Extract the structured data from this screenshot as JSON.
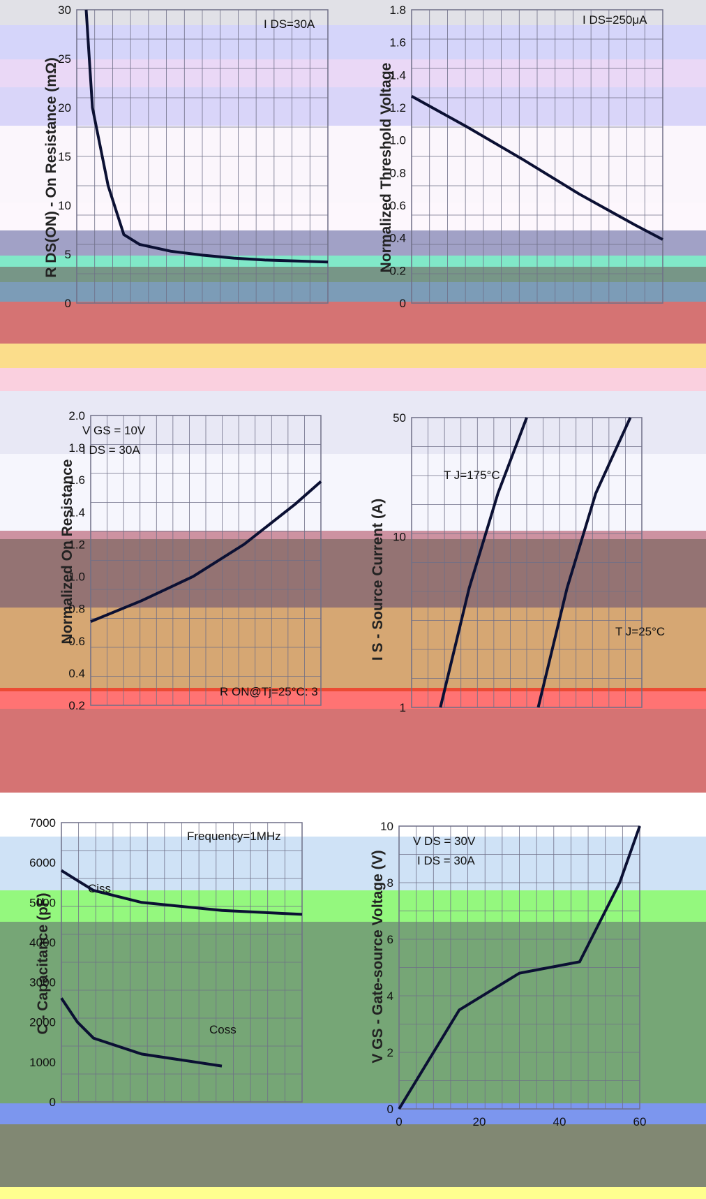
{
  "colors": {
    "curve": "#0b1033",
    "grid": "#6f6f87",
    "bands": [
      "#c9c9d3",
      "#b3b3f5",
      "#d8b8ee",
      "#b9b2f4",
      "#f7eef9",
      "#fbf1fb",
      "#535397",
      "#1ad69a",
      "#083f24",
      "#114a7c",
      "#b30000",
      "#f8c12c",
      "#f6a9c4",
      "#d5d5ec",
      "#eeeefb",
      "#a43853",
      "#3d0000",
      "#b55e00",
      "#8f4d00",
      "#ff0000",
      "#b30000",
      "#a8cbef",
      "#3df214",
      "#065c06",
      "#1040e0",
      "#1a2600",
      "#ffff33"
    ]
  },
  "chart_data": [
    {
      "type": "line",
      "ylabel": "R DS(ON) - On Resistance (mΩ)",
      "ylim": [
        0,
        30
      ],
      "y_ticks": [
        "30",
        "25",
        "20",
        "15",
        "10",
        "5",
        "0"
      ],
      "annotations": [
        "I DS=30A"
      ],
      "series": [
        {
          "x": [
            2.3,
            2.5,
            3,
            3.5,
            4,
            5,
            6,
            7,
            8,
            9,
            10
          ],
          "y": [
            30,
            20,
            12,
            7,
            6,
            5.3,
            4.9,
            4.6,
            4.4,
            4.3,
            4.2
          ]
        }
      ]
    },
    {
      "type": "line",
      "ylabel": "Normalized Threshold Voltage",
      "ylim": [
        0,
        1.8
      ],
      "y_ticks": [
        "1.8",
        "1.6",
        "1.4",
        "1.2",
        "1.0",
        "0.8",
        "0.6",
        "0.4",
        "0.2",
        "0"
      ],
      "annotations": [
        "I DS=250μA"
      ],
      "series": [
        {
          "x": [
            -50,
            0,
            50,
            100,
            150,
            175
          ],
          "y": [
            1.27,
            1.08,
            0.88,
            0.67,
            0.48,
            0.39
          ]
        }
      ]
    },
    {
      "type": "line",
      "ylabel": "Normalized On Resistance",
      "ylim": [
        0.2,
        2.0
      ],
      "y_ticks": [
        "2.0",
        "1.8",
        "1.6",
        "1.4",
        "1.2",
        "1.0",
        "0.8",
        "0.6",
        "0.4",
        "0.2"
      ],
      "annotations": [
        "V GS = 10V",
        "I DS = 30A",
        "R ON@Tj=25°C: 3"
      ],
      "series": [
        {
          "x": [
            -50,
            0,
            50,
            100,
            150,
            175
          ],
          "y": [
            0.72,
            0.85,
            1.0,
            1.2,
            1.45,
            1.59
          ]
        }
      ]
    },
    {
      "type": "line",
      "ylabel": "I S - Source Current (A)",
      "ylim": [
        1,
        50
      ],
      "y_ticks": [
        "50",
        "10",
        "1"
      ],
      "annotations": [
        "T J=175°C",
        "T J=25°C"
      ],
      "series": [
        {
          "name": "T J=175°C",
          "x": [
            0.45,
            0.5,
            0.55,
            0.6
          ],
          "y": [
            1,
            5,
            18,
            50
          ]
        },
        {
          "name": "T J=25°C",
          "x": [
            0.62,
            0.67,
            0.72,
            0.78
          ],
          "y": [
            1,
            5,
            18,
            50
          ]
        }
      ]
    },
    {
      "type": "line",
      "ylabel": "C - Capacitance (pF)",
      "ylim": [
        0,
        7000
      ],
      "y_ticks": [
        "7000",
        "6000",
        "5000",
        "4000",
        "3000",
        "2000",
        "1000",
        "0"
      ],
      "annotations": [
        "Frequency=1MHz",
        "Ciss",
        "Coss"
      ],
      "series": [
        {
          "name": "Ciss",
          "x": [
            0,
            1,
            2,
            5,
            10,
            15
          ],
          "y": [
            5800,
            5550,
            5300,
            5000,
            4800,
            4700
          ]
        },
        {
          "name": "Coss",
          "x": [
            0,
            1,
            2,
            5,
            10
          ],
          "y": [
            2600,
            2000,
            1600,
            1200,
            900
          ]
        }
      ]
    },
    {
      "type": "line",
      "ylabel": "V GS - Gate-source Voltage (V)",
      "ylim": [
        0,
        10
      ],
      "y_ticks": [
        "10",
        "8",
        "6",
        "4",
        "2",
        "0"
      ],
      "x_ticks": [
        "0",
        "20",
        "40",
        "60"
      ],
      "annotations": [
        "V DS = 30V",
        "I DS = 30A"
      ],
      "series": [
        {
          "x": [
            0,
            15,
            30,
            45,
            55,
            60
          ],
          "y": [
            0,
            3.5,
            4.8,
            5.2,
            8,
            10
          ]
        }
      ]
    }
  ]
}
